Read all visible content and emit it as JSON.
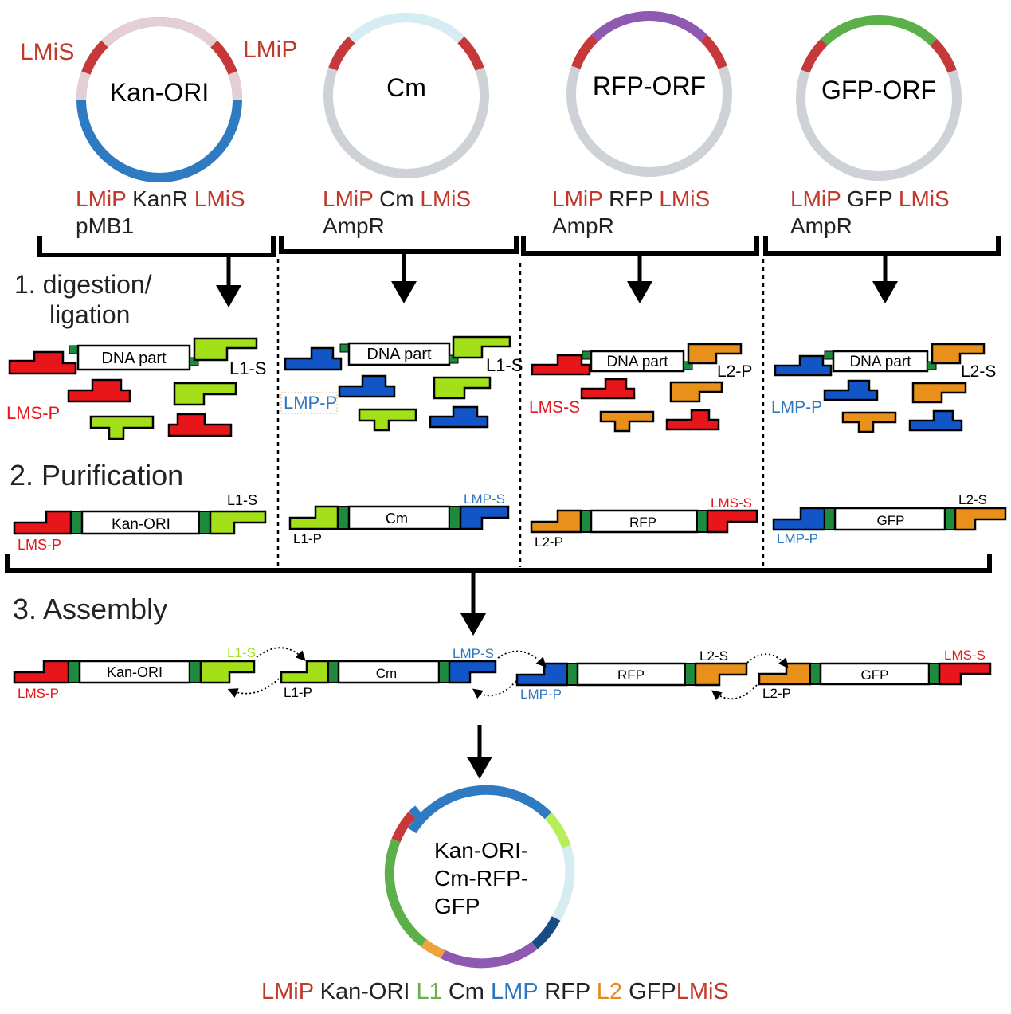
{
  "plasmids": [
    {
      "name": "Kan-ORI",
      "left_label": "LMiS",
      "right_label": "LMiP",
      "line1": {
        "a": "LMiP",
        "b": "KanR",
        "c": "LMiS"
      },
      "line2": "pMB1"
    },
    {
      "name": "Cm",
      "line1": {
        "a": "LMiP",
        "b": "Cm",
        "c": "LMiS"
      },
      "line2": "AmpR"
    },
    {
      "name": "RFP-ORF",
      "line1": {
        "a": "LMiP",
        "b": "RFP",
        "c": "LMiS"
      },
      "line2": "AmpR"
    },
    {
      "name": "GFP-ORF",
      "line1": {
        "a": "LMiP",
        "b": "GFP",
        "c": "LMiS"
      },
      "line2": "AmpR"
    }
  ],
  "steps": {
    "step1_line1": "1.  digestion/",
    "step1_line2": "ligation",
    "step2": "2. Purification",
    "step3": "3. Assembly"
  },
  "digestion": {
    "dna_part": "DNA part",
    "panels": [
      {
        "left": "LMS-P",
        "right": "L1-S"
      },
      {
        "left": "LMP-P",
        "right": "L1-S"
      },
      {
        "left": "LMS-S",
        "right": "L2-P"
      },
      {
        "left": "LMP-P",
        "right": "L2-S"
      }
    ]
  },
  "purification": [
    {
      "part": "Kan-ORI",
      "left": "LMS-P",
      "right": "L1-S"
    },
    {
      "part": "Cm",
      "left": "L1-P",
      "right": "LMP-S"
    },
    {
      "part": "RFP",
      "left": "L2-P",
      "right": "LMS-S"
    },
    {
      "part": "GFP",
      "left": "LMP-P",
      "right": "L2-S"
    }
  ],
  "assembly": [
    {
      "part": "Kan-ORI",
      "left": "LMS-P",
      "right": "L1-S"
    },
    {
      "part": "Cm",
      "left": "L1-P",
      "right": "LMP-S"
    },
    {
      "part": "RFP",
      "left": "LMP-P",
      "right": "L2-S"
    },
    {
      "part": "GFP",
      "left": "L2-P",
      "right": "LMS-S"
    }
  ],
  "final": {
    "name_line1": "Kan-ORI-",
    "name_line2": "Cm-RFP-",
    "name_line3": "GFP",
    "caption": {
      "p1": "LMiP",
      "p2": "Kan-ORI",
      "p3": "L1",
      "p4": "Cm",
      "p5": "LMP",
      "p6": "RFP",
      "p7": "L2",
      "p8": "GFP",
      "p9": "LMiS"
    }
  },
  "colors": {
    "red": "#e8151b",
    "lime": "#a3e01a",
    "blue": "#1155c6",
    "orange": "#e8901a",
    "darkgreen": "#1e8a3e",
    "label_red": "#c0392b",
    "label_blue": "#2e77c0",
    "label_green": "#6ab04c",
    "label_orange": "#e58a22",
    "ring_blue": "#2f7bc2",
    "ring_gray": "#ced2d6",
    "ring_pink": "#e5cfd2",
    "ring_lightblue": "#d6ecf3",
    "ring_purple": "#8e59b0",
    "ring_green": "#5bb04a",
    "ring_red": "#c6383a",
    "ring_lime": "#b7ef5a",
    "ring_navy": "#174c84",
    "ring_orange": "#f0a33a"
  }
}
